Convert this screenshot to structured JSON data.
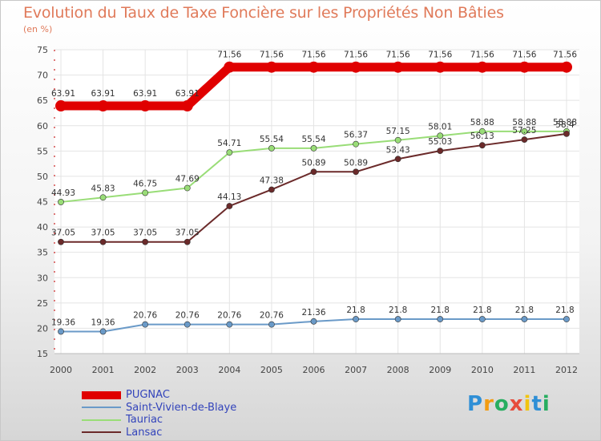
{
  "chart_data": {
    "type": "line",
    "title": "Evolution du Taux de Taxe Foncière sur les Propriétés Non Bâties",
    "ylabel": "(en %)",
    "xlabel": "",
    "ylim": [
      15,
      75
    ],
    "yticks": [
      15,
      20,
      25,
      30,
      35,
      40,
      45,
      50,
      55,
      60,
      65,
      70,
      75
    ],
    "categories": [
      "2000",
      "2001",
      "2002",
      "2003",
      "2004",
      "2005",
      "2006",
      "2007",
      "2008",
      "2009",
      "2010",
      "2011",
      "2012"
    ],
    "series": [
      {
        "name": "PUGNAC",
        "color": "#e00000",
        "values": [
          63.91,
          63.91,
          63.91,
          63.91,
          71.56,
          71.56,
          71.56,
          71.56,
          71.56,
          71.56,
          71.56,
          71.56,
          71.56
        ],
        "labels": [
          "63.91",
          "63.91",
          "63.91",
          "63.91",
          "71.56",
          "71.56",
          "71.56",
          "71.56",
          "71.56",
          "71.56",
          "71.56",
          "71.56",
          "71.56"
        ]
      },
      {
        "name": "Saint-Vivien-de-Blaye",
        "color": "#6a9ac8",
        "values": [
          19.36,
          19.36,
          20.76,
          20.76,
          20.76,
          20.76,
          21.36,
          21.8,
          21.8,
          21.8,
          21.8,
          21.8,
          21.8
        ],
        "labels": [
          "19.36",
          "19.36",
          "20.76",
          "20.76",
          "20.76",
          "20.76",
          "21.36",
          "21.8",
          "21.8",
          "21.8",
          "21.8",
          "21.8",
          "21.8"
        ]
      },
      {
        "name": "Tauriac",
        "color": "#99dd77",
        "values": [
          44.93,
          45.83,
          46.75,
          47.69,
          54.71,
          55.54,
          55.54,
          56.37,
          57.15,
          58.01,
          58.88,
          58.88,
          58.88
        ],
        "labels": [
          "44.93",
          "45.83",
          "46.75",
          "47.69",
          "54.71",
          "55.54",
          "55.54",
          "56.37",
          "57.15",
          "58.01",
          "58.88",
          "58.88",
          "58.88"
        ]
      },
      {
        "name": "Lansac",
        "color": "#6b2a2a",
        "values": [
          37.05,
          37.05,
          37.05,
          37.05,
          44.13,
          47.38,
          50.89,
          50.89,
          53.43,
          55.03,
          56.13,
          57.25,
          58.4
        ],
        "labels": [
          "37.05",
          "37.05",
          "37.05",
          "37.05",
          "44.13",
          "47.38",
          "50.89",
          "50.89",
          "53.43",
          "55.03",
          "56.13",
          "57.25",
          "58.4"
        ]
      }
    ]
  },
  "legend": {
    "items": [
      {
        "label": "PUGNAC",
        "color": "#e00000"
      },
      {
        "label": "Saint-Vivien-de-Blaye",
        "color": "#6a9ac8"
      },
      {
        "label": "Tauriac",
        "color": "#99dd77"
      },
      {
        "label": "Lansac",
        "color": "#6b2a2a"
      }
    ]
  },
  "brand": {
    "letters": [
      "P",
      "r",
      "o",
      "x",
      "i",
      "t",
      "i"
    ]
  }
}
